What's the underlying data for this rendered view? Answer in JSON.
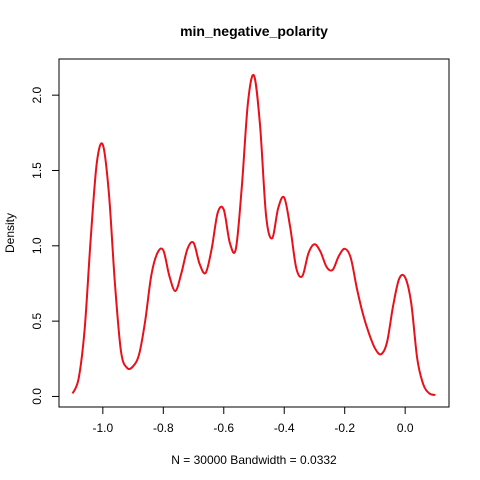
{
  "chart_data": {
    "type": "line",
    "title": "min_negative_polarity",
    "xlabel": "N = 30000   Bandwidth = 0.0332",
    "ylabel": "Density",
    "xlim": [
      -1.145,
      0.145
    ],
    "ylim": [
      -0.07,
      2.24
    ],
    "x_ticks": [
      -1.0,
      -0.8,
      -0.6,
      -0.4,
      -0.2,
      0.0
    ],
    "x_tick_labels": [
      "-1.0",
      "-0.8",
      "-0.6",
      "-0.4",
      "-0.2",
      "0.0"
    ],
    "y_ticks": [
      0.0,
      0.5,
      1.0,
      1.5,
      2.0
    ],
    "y_tick_labels": [
      "0.0",
      "0.5",
      "1.0",
      "1.5",
      "2.0"
    ],
    "grid": false,
    "series": [
      {
        "color": "#e8101a",
        "x": [
          -1.1,
          -1.08,
          -1.06,
          -1.04,
          -1.02,
          -1.0,
          -0.98,
          -0.96,
          -0.94,
          -0.92,
          -0.9,
          -0.88,
          -0.86,
          -0.84,
          -0.82,
          -0.8,
          -0.78,
          -0.76,
          -0.74,
          -0.72,
          -0.7,
          -0.68,
          -0.66,
          -0.64,
          -0.62,
          -0.6,
          -0.58,
          -0.56,
          -0.54,
          -0.52,
          -0.5,
          -0.48,
          -0.46,
          -0.44,
          -0.42,
          -0.4,
          -0.38,
          -0.36,
          -0.34,
          -0.32,
          -0.3,
          -0.28,
          -0.26,
          -0.24,
          -0.22,
          -0.2,
          -0.18,
          -0.16,
          -0.14,
          -0.12,
          -0.1,
          -0.08,
          -0.06,
          -0.04,
          -0.02,
          0.0,
          0.02,
          0.04,
          0.06,
          0.08,
          0.1
        ],
        "y": [
          0.02,
          0.12,
          0.45,
          1.05,
          1.55,
          1.67,
          1.35,
          0.75,
          0.3,
          0.19,
          0.2,
          0.28,
          0.5,
          0.8,
          0.95,
          0.97,
          0.8,
          0.7,
          0.82,
          0.98,
          1.02,
          0.88,
          0.82,
          0.98,
          1.22,
          1.24,
          1.02,
          0.98,
          1.4,
          1.95,
          2.13,
          1.8,
          1.2,
          1.05,
          1.25,
          1.32,
          1.12,
          0.85,
          0.8,
          0.95,
          1.01,
          0.96,
          0.86,
          0.84,
          0.93,
          0.98,
          0.92,
          0.72,
          0.55,
          0.42,
          0.32,
          0.28,
          0.36,
          0.6,
          0.78,
          0.79,
          0.62,
          0.25,
          0.08,
          0.02,
          0.01
        ]
      }
    ]
  }
}
